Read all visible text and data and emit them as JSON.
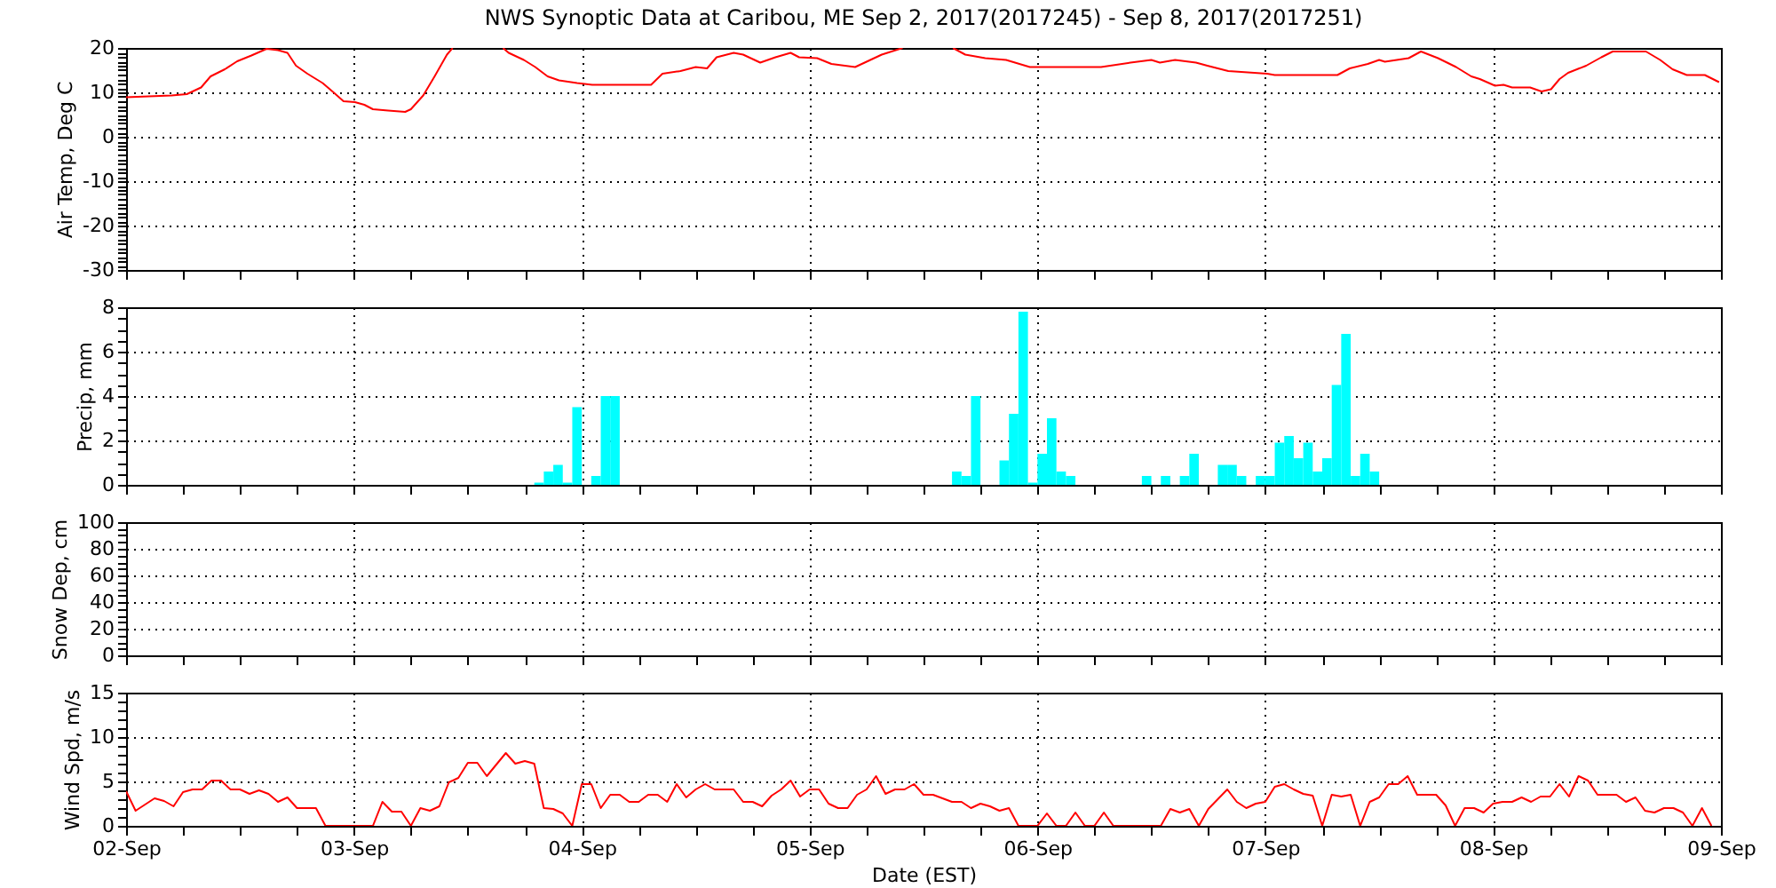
{
  "chart_data": [
    {
      "type": "line",
      "title": "NWS Synoptic Data at Caribou, ME   Sep  2, 2017(2017245) - Sep  8, 2017(2017251)",
      "ylabel": "Air Temp, Deg C",
      "grid": true,
      "tick_labels": "y",
      "xlim": [
        "2017-09-02T00:00",
        "2017-09-09T00:00"
      ],
      "xticks": [
        {
          "value": "2017-09-02T00:00",
          "label": null
        },
        {
          "value": "2017-09-02T06:00",
          "label": null
        },
        {
          "value": "2017-09-02T12:00",
          "label": null
        },
        {
          "value": "2017-09-02T18:00",
          "label": null
        },
        {
          "value": "2017-09-03T00:00",
          "label": null
        },
        {
          "value": "2017-09-03T06:00",
          "label": null
        },
        {
          "value": "2017-09-03T12:00",
          "label": null
        },
        {
          "value": "2017-09-03T18:00",
          "label": null
        },
        {
          "value": "2017-09-04T00:00",
          "label": null
        },
        {
          "value": "2017-09-04T06:00",
          "label": null
        },
        {
          "value": "2017-09-04T12:00",
          "label": null
        },
        {
          "value": "2017-09-04T18:00",
          "label": null
        },
        {
          "value": "2017-09-05T00:00",
          "label": null
        },
        {
          "value": "2017-09-05T06:00",
          "label": null
        },
        {
          "value": "2017-09-05T12:00",
          "label": null
        },
        {
          "value": "2017-09-05T18:00",
          "label": null
        },
        {
          "value": "2017-09-06T00:00",
          "label": null
        },
        {
          "value": "2017-09-06T06:00",
          "label": null
        },
        {
          "value": "2017-09-06T12:00",
          "label": null
        },
        {
          "value": "2017-09-06T18:00",
          "label": null
        },
        {
          "value": "2017-09-07T00:00",
          "label": null
        },
        {
          "value": "2017-09-07T06:00",
          "label": null
        },
        {
          "value": "2017-09-07T12:00",
          "label": null
        },
        {
          "value": "2017-09-07T18:00",
          "label": null
        },
        {
          "value": "2017-09-08T00:00",
          "label": null
        },
        {
          "value": "2017-09-08T06:00",
          "label": null
        },
        {
          "value": "2017-09-08T12:00",
          "label": null
        },
        {
          "value": "2017-09-08T18:00",
          "label": null
        },
        {
          "value": "2017-09-09T00:00",
          "label": null
        }
      ],
      "ylim": [
        -30,
        20
      ],
      "yticks": [
        -30,
        {
          "value": -29,
          "label": null
        },
        {
          "value": -28,
          "label": null
        },
        {
          "value": -27,
          "label": null
        },
        {
          "value": -26,
          "label": null
        },
        {
          "value": -25,
          "label": null
        },
        {
          "value": -24,
          "label": null
        },
        {
          "value": -23,
          "label": null
        },
        {
          "value": -22,
          "label": null
        },
        {
          "value": -21,
          "label": null
        },
        -20,
        {
          "value": -19,
          "label": null
        },
        {
          "value": -18,
          "label": null
        },
        {
          "value": -17,
          "label": null
        },
        {
          "value": -16,
          "label": null
        },
        {
          "value": -15,
          "label": null
        },
        {
          "value": -14,
          "label": null
        },
        {
          "value": -13,
          "label": null
        },
        {
          "value": -12,
          "label": null
        },
        {
          "value": -11,
          "label": null
        },
        -10,
        {
          "value": -9,
          "label": null
        },
        {
          "value": -8,
          "label": null
        },
        {
          "value": -7,
          "label": null
        },
        {
          "value": -6,
          "label": null
        },
        {
          "value": -5,
          "label": null
        },
        {
          "value": -4,
          "label": null
        },
        {
          "value": -3,
          "label": null
        },
        {
          "value": -2,
          "label": null
        },
        {
          "value": -1,
          "label": null
        },
        0,
        {
          "value": 1,
          "label": null
        },
        {
          "value": 2,
          "label": null
        },
        {
          "value": 3,
          "label": null
        },
        {
          "value": 4,
          "label": null
        },
        {
          "value": 5,
          "label": null
        },
        {
          "value": 6,
          "label": null
        },
        {
          "value": 7,
          "label": null
        },
        {
          "value": 8,
          "label": null
        },
        {
          "value": 9,
          "label": null
        },
        10,
        {
          "value": 11,
          "label": null
        },
        {
          "value": 12,
          "label": null
        },
        {
          "value": 13,
          "label": null
        },
        {
          "value": 14,
          "label": null
        },
        {
          "value": 15,
          "label": null
        },
        {
          "value": 16,
          "label": null
        },
        {
          "value": 17,
          "label": null
        },
        {
          "value": 18,
          "label": null
        },
        {
          "value": 19,
          "label": null
        },
        20
      ],
      "series": [
        {
          "color": "#ff0000",
          "x": [
            "2017-09-02T00:00",
            "2017-09-02T04:48",
            "2017-09-02T06:24",
            "2017-09-02T07:54",
            "2017-09-02T08:54",
            "2017-09-02T10:24",
            "2017-09-02T11:42",
            "2017-09-02T13:12",
            "2017-09-02T14:48",
            "2017-09-02T16:00",
            "2017-09-02T17:00",
            "2017-09-02T17:54",
            "2017-09-02T19:06",
            "2017-09-02T20:42",
            "2017-09-02T21:54",
            "2017-09-02T22:54",
            "2017-09-03T00:06",
            "2017-09-03T01:06",
            "2017-09-03T02:00",
            "2017-09-03T03:36",
            "2017-09-03T05:24",
            "2017-09-03T06:00",
            "2017-09-03T07:18",
            "2017-09-03T08:30",
            "2017-09-03T09:48",
            "2017-09-03T10:24",
            "2017-09-03T13:00",
            "2017-09-03T15:42",
            "2017-09-03T16:18",
            "2017-09-03T17:54",
            "2017-09-03T19:06",
            "2017-09-03T20:24",
            "2017-09-03T21:36",
            "2017-09-03T23:30",
            "2017-09-04T01:06",
            "2017-09-04T07:18",
            "2017-09-04T08:30",
            "2017-09-04T10:24",
            "2017-09-04T12:00",
            "2017-09-04T13:12",
            "2017-09-04T14:12",
            "2017-09-04T16:00",
            "2017-09-04T17:00",
            "2017-09-04T18:48",
            "2017-09-04T20:24",
            "2017-09-04T22:00",
            "2017-09-04T22:54",
            "2017-09-05T00:48",
            "2017-09-05T02:18",
            "2017-09-05T04:48",
            "2017-09-05T06:24",
            "2017-09-05T07:36",
            "2017-09-05T09:48",
            "2017-09-05T12:30",
            "2017-09-05T15:06",
            "2017-09-05T16:24",
            "2017-09-05T18:30",
            "2017-09-05T20:42",
            "2017-09-05T23:12",
            "2017-09-06T01:06",
            "2017-09-06T06:42",
            "2017-09-06T09:48",
            "2017-09-06T12:00",
            "2017-09-06T12:54",
            "2017-09-06T14:30",
            "2017-09-06T16:42",
            "2017-09-06T17:54",
            "2017-09-06T20:06",
            "2017-09-07T00:12",
            "2017-09-07T01:00",
            "2017-09-07T07:36",
            "2017-09-07T08:54",
            "2017-09-07T10:48",
            "2017-09-07T12:00",
            "2017-09-07T12:36",
            "2017-09-07T15:06",
            "2017-09-07T16:24",
            "2017-09-07T18:12",
            "2017-09-07T20:06",
            "2017-09-07T21:42",
            "2017-09-07T22:36",
            "2017-09-08T00:12",
            "2017-09-08T01:06",
            "2017-09-08T02:00",
            "2017-09-08T03:54",
            "2017-09-08T05:06",
            "2017-09-08T06:06",
            "2017-09-08T07:00",
            "2017-09-08T07:54",
            "2017-09-08T09:48",
            "2017-09-08T11:24",
            "2017-09-08T12:36",
            "2017-09-08T16:06",
            "2017-09-08T17:36",
            "2017-09-08T18:54",
            "2017-09-08T20:24",
            "2017-09-08T22:18",
            "2017-09-08T23:48"
          ],
          "values": [
            8.9,
            9.3,
            9.6,
            11.1,
            13.6,
            15.2,
            17.0,
            18.3,
            19.8,
            19.5,
            18.9,
            16.0,
            14.2,
            12.1,
            9.9,
            8.0,
            7.8,
            7.2,
            6.2,
            5.9,
            5.6,
            6.2,
            9.3,
            13.6,
            18.5,
            20,
            null,
            20,
            18.9,
            17.3,
            15.7,
            13.6,
            12.7,
            12.1,
            11.7,
            11.7,
            14.2,
            14.8,
            15.7,
            15.4,
            17.9,
            18.9,
            18.5,
            16.7,
            17.9,
            18.9,
            17.9,
            17.7,
            16.4,
            15.7,
            17.3,
            18.5,
            20,
            null,
            20,
            18.5,
            17.7,
            17.3,
            15.7,
            15.7,
            15.7,
            16.7,
            17.3,
            16.7,
            17.3,
            16.7,
            16.0,
            14.8,
            14.2,
            13.9,
            13.9,
            15.4,
            16.4,
            17.3,
            16.9,
            17.7,
            19.2,
            17.7,
            15.7,
            13.6,
            13.0,
            11.5,
            11.7,
            11.1,
            11.1,
            10.2,
            10.7,
            13.0,
            14.4,
            16.0,
            17.9,
            19.2,
            19.2,
            17.3,
            15.2,
            13.9,
            13.9,
            12.3
          ]
        }
      ]
    },
    {
      "type": "bar",
      "ylabel": "Precip, mm",
      "grid": true,
      "tick_labels": "y",
      "xlim": [
        "2017-09-02T00:00",
        "2017-09-09T00:00"
      ],
      "xticks": [
        {
          "value": "2017-09-02T00:00",
          "label": null
        },
        {
          "value": "2017-09-02T06:00",
          "label": null
        },
        {
          "value": "2017-09-02T12:00",
          "label": null
        },
        {
          "value": "2017-09-02T18:00",
          "label": null
        },
        {
          "value": "2017-09-03T00:00",
          "label": null
        },
        {
          "value": "2017-09-03T06:00",
          "label": null
        },
        {
          "value": "2017-09-03T12:00",
          "label": null
        },
        {
          "value": "2017-09-03T18:00",
          "label": null
        },
        {
          "value": "2017-09-04T00:00",
          "label": null
        },
        {
          "value": "2017-09-04T06:00",
          "label": null
        },
        {
          "value": "2017-09-04T12:00",
          "label": null
        },
        {
          "value": "2017-09-04T18:00",
          "label": null
        },
        {
          "value": "2017-09-05T00:00",
          "label": null
        },
        {
          "value": "2017-09-05T06:00",
          "label": null
        },
        {
          "value": "2017-09-05T12:00",
          "label": null
        },
        {
          "value": "2017-09-05T18:00",
          "label": null
        },
        {
          "value": "2017-09-06T00:00",
          "label": null
        },
        {
          "value": "2017-09-06T06:00",
          "label": null
        },
        {
          "value": "2017-09-06T12:00",
          "label": null
        },
        {
          "value": "2017-09-06T18:00",
          "label": null
        },
        {
          "value": "2017-09-07T00:00",
          "label": null
        },
        {
          "value": "2017-09-07T06:00",
          "label": null
        },
        {
          "value": "2017-09-07T12:00",
          "label": null
        },
        {
          "value": "2017-09-07T18:00",
          "label": null
        },
        {
          "value": "2017-09-08T00:00",
          "label": null
        },
        {
          "value": "2017-09-08T06:00",
          "label": null
        },
        {
          "value": "2017-09-08T12:00",
          "label": null
        },
        {
          "value": "2017-09-08T18:00",
          "label": null
        },
        {
          "value": "2017-09-09T00:00",
          "label": null
        }
      ],
      "ylim": [
        0,
        8
      ],
      "yticks": [
        0,
        {
          "value": 0.5,
          "label": null
        },
        {
          "value": 1,
          "label": null
        },
        {
          "value": 1.5,
          "label": null
        },
        2,
        {
          "value": 2.5,
          "label": null
        },
        {
          "value": 3,
          "label": null
        },
        {
          "value": 3.5,
          "label": null
        },
        4,
        {
          "value": 4.5,
          "label": null
        },
        {
          "value": 5,
          "label": null
        },
        {
          "value": 5.5,
          "label": null
        },
        6,
        {
          "value": 6.5,
          "label": null
        },
        {
          "value": 7,
          "label": null
        },
        {
          "value": 7.5,
          "label": null
        },
        8
      ],
      "series": [
        {
          "color": "#00ffff",
          "x": [
            "2017-09-03T19:30",
            "2017-09-03T20:30",
            "2017-09-03T21:30",
            "2017-09-03T22:30",
            "2017-09-03T23:30",
            "2017-09-04T01:30",
            "2017-09-04T02:30",
            "2017-09-04T03:30",
            "2017-09-05T15:30",
            "2017-09-05T16:30",
            "2017-09-05T17:30",
            "2017-09-05T20:30",
            "2017-09-05T21:30",
            "2017-09-05T22:30",
            "2017-09-05T23:30",
            "2017-09-06T00:30",
            "2017-09-06T01:30",
            "2017-09-06T02:30",
            "2017-09-06T03:30",
            "2017-09-06T11:30",
            "2017-09-06T13:30",
            "2017-09-06T15:30",
            "2017-09-06T16:30",
            "2017-09-06T19:30",
            "2017-09-06T20:30",
            "2017-09-06T21:30",
            "2017-09-06T23:30",
            "2017-09-07T00:30",
            "2017-09-07T01:30",
            "2017-09-07T02:30",
            "2017-09-07T03:30",
            "2017-09-07T04:30",
            "2017-09-07T05:30",
            "2017-09-07T06:30",
            "2017-09-07T07:30",
            "2017-09-07T08:30",
            "2017-09-07T09:30",
            "2017-09-07T10:30",
            "2017-09-07T11:30"
          ],
          "values": [
            0.1,
            0.6,
            0.9,
            0.1,
            3.5,
            0.4,
            4.0,
            4.0,
            0.6,
            0.4,
            4.0,
            1.1,
            3.2,
            7.8,
            0.1,
            1.4,
            3.0,
            0.6,
            0.4,
            0.4,
            0.4,
            0.4,
            1.4,
            0.9,
            0.9,
            0.4,
            0.4,
            0.4,
            1.9,
            2.2,
            1.2,
            1.9,
            0.6,
            1.2,
            4.5,
            6.8,
            0.4,
            1.4,
            0.6
          ]
        }
      ]
    },
    {
      "type": "line",
      "ylabel": "Snow Dep, cm",
      "grid": true,
      "tick_labels": "y",
      "xlim": [
        "2017-09-02T00:00",
        "2017-09-09T00:00"
      ],
      "xticks": [
        {
          "value": "2017-09-02T00:00",
          "label": null
        },
        {
          "value": "2017-09-02T06:00",
          "label": null
        },
        {
          "value": "2017-09-02T12:00",
          "label": null
        },
        {
          "value": "2017-09-02T18:00",
          "label": null
        },
        {
          "value": "2017-09-03T00:00",
          "label": null
        },
        {
          "value": "2017-09-03T06:00",
          "label": null
        },
        {
          "value": "2017-09-03T12:00",
          "label": null
        },
        {
          "value": "2017-09-03T18:00",
          "label": null
        },
        {
          "value": "2017-09-04T00:00",
          "label": null
        },
        {
          "value": "2017-09-04T06:00",
          "label": null
        },
        {
          "value": "2017-09-04T12:00",
          "label": null
        },
        {
          "value": "2017-09-04T18:00",
          "label": null
        },
        {
          "value": "2017-09-05T00:00",
          "label": null
        },
        {
          "value": "2017-09-05T06:00",
          "label": null
        },
        {
          "value": "2017-09-05T12:00",
          "label": null
        },
        {
          "value": "2017-09-05T18:00",
          "label": null
        },
        {
          "value": "2017-09-06T00:00",
          "label": null
        },
        {
          "value": "2017-09-06T06:00",
          "label": null
        },
        {
          "value": "2017-09-06T12:00",
          "label": null
        },
        {
          "value": "2017-09-06T18:00",
          "label": null
        },
        {
          "value": "2017-09-07T00:00",
          "label": null
        },
        {
          "value": "2017-09-07T06:00",
          "label": null
        },
        {
          "value": "2017-09-07T12:00",
          "label": null
        },
        {
          "value": "2017-09-07T18:00",
          "label": null
        },
        {
          "value": "2017-09-08T00:00",
          "label": null
        },
        {
          "value": "2017-09-08T06:00",
          "label": null
        },
        {
          "value": "2017-09-08T12:00",
          "label": null
        },
        {
          "value": "2017-09-08T18:00",
          "label": null
        },
        {
          "value": "2017-09-09T00:00",
          "label": null
        }
      ],
      "ylim": [
        0,
        100
      ],
      "yticks": [
        0,
        {
          "value": 5,
          "label": null
        },
        {
          "value": 10,
          "label": null
        },
        {
          "value": 15,
          "label": null
        },
        20,
        {
          "value": 25,
          "label": null
        },
        {
          "value": 30,
          "label": null
        },
        {
          "value": 35,
          "label": null
        },
        40,
        {
          "value": 45,
          "label": null
        },
        {
          "value": 50,
          "label": null
        },
        {
          "value": 55,
          "label": null
        },
        60,
        {
          "value": 65,
          "label": null
        },
        {
          "value": 70,
          "label": null
        },
        {
          "value": 75,
          "label": null
        },
        80,
        {
          "value": 85,
          "label": null
        },
        {
          "value": 90,
          "label": null
        },
        {
          "value": 95,
          "label": null
        },
        100
      ]
    },
    {
      "type": "line",
      "ylabel": "Wind Spd, m/s",
      "xlabel": "Date (EST)",
      "grid": true,
      "xlim": [
        "2017-09-02T00:00",
        "2017-09-09T00:00"
      ],
      "xticks": [
        {
          "value": "2017-09-02T00:00",
          "label": "02-Sep"
        },
        {
          "value": "2017-09-02T06:00",
          "label": null
        },
        {
          "value": "2017-09-02T12:00",
          "label": null
        },
        {
          "value": "2017-09-02T18:00",
          "label": null
        },
        {
          "value": "2017-09-03T00:00",
          "label": "03-Sep"
        },
        {
          "value": "2017-09-03T06:00",
          "label": null
        },
        {
          "value": "2017-09-03T12:00",
          "label": null
        },
        {
          "value": "2017-09-03T18:00",
          "label": null
        },
        {
          "value": "2017-09-04T00:00",
          "label": "04-Sep"
        },
        {
          "value": "2017-09-04T06:00",
          "label": null
        },
        {
          "value": "2017-09-04T12:00",
          "label": null
        },
        {
          "value": "2017-09-04T18:00",
          "label": null
        },
        {
          "value": "2017-09-05T00:00",
          "label": "05-Sep"
        },
        {
          "value": "2017-09-05T06:00",
          "label": null
        },
        {
          "value": "2017-09-05T12:00",
          "label": null
        },
        {
          "value": "2017-09-05T18:00",
          "label": null
        },
        {
          "value": "2017-09-06T00:00",
          "label": "06-Sep"
        },
        {
          "value": "2017-09-06T06:00",
          "label": null
        },
        {
          "value": "2017-09-06T12:00",
          "label": null
        },
        {
          "value": "2017-09-06T18:00",
          "label": null
        },
        {
          "value": "2017-09-07T00:00",
          "label": "07-Sep"
        },
        {
          "value": "2017-09-07T06:00",
          "label": null
        },
        {
          "value": "2017-09-07T12:00",
          "label": null
        },
        {
          "value": "2017-09-07T18:00",
          "label": null
        },
        {
          "value": "2017-09-08T00:00",
          "label": "08-Sep"
        },
        {
          "value": "2017-09-08T06:00",
          "label": null
        },
        {
          "value": "2017-09-08T12:00",
          "label": null
        },
        {
          "value": "2017-09-08T18:00",
          "label": null
        },
        {
          "value": "2017-09-09T00:00",
          "label": "09-Sep"
        }
      ],
      "ylim": [
        0,
        15
      ],
      "yticks": [
        0,
        {
          "value": 1,
          "label": null
        },
        {
          "value": 2,
          "label": null
        },
        {
          "value": 3,
          "label": null
        },
        {
          "value": 4,
          "label": null
        },
        5,
        {
          "value": 6,
          "label": null
        },
        {
          "value": 7,
          "label": null
        },
        {
          "value": 8,
          "label": null
        },
        {
          "value": 9,
          "label": null
        },
        10,
        {
          "value": 11,
          "label": null
        },
        {
          "value": 12,
          "label": null
        },
        {
          "value": 13,
          "label": null
        },
        {
          "value": 14,
          "label": null
        },
        15
      ],
      "series": [
        {
          "color": "#ff0000",
          "x": [
            "2017-09-02T00:00",
            "2017-09-02T01:00",
            "2017-09-02T03:00",
            "2017-09-02T04:00",
            "2017-09-02T05:00",
            "2017-09-02T06:00",
            "2017-09-02T07:00",
            "2017-09-02T08:00",
            "2017-09-02T09:00",
            "2017-09-02T10:00",
            "2017-09-02T11:00",
            "2017-09-02T12:00",
            "2017-09-02T13:00",
            "2017-09-02T14:00",
            "2017-09-02T15:00",
            "2017-09-02T16:00",
            "2017-09-02T17:00",
            "2017-09-02T18:00",
            "2017-09-02T20:00",
            "2017-09-02T21:00",
            "2017-09-03T02:00",
            "2017-09-03T03:00",
            "2017-09-03T04:00",
            "2017-09-03T05:00",
            "2017-09-03T06:00",
            "2017-09-03T07:00",
            "2017-09-03T08:00",
            "2017-09-03T09:00",
            "2017-09-03T10:00",
            "2017-09-03T11:00",
            "2017-09-03T12:00",
            "2017-09-03T13:00",
            "2017-09-03T14:00",
            "2017-09-03T15:00",
            "2017-09-03T16:00",
            "2017-09-03T17:00",
            "2017-09-03T18:00",
            "2017-09-03T19:00",
            "2017-09-03T20:00",
            "2017-09-03T21:00",
            "2017-09-03T22:00",
            "2017-09-03T23:00",
            "2017-09-04T00:00",
            "2017-09-04T01:00",
            "2017-09-04T02:00",
            "2017-09-04T03:00",
            "2017-09-04T04:00",
            "2017-09-04T05:00",
            "2017-09-04T06:00",
            "2017-09-04T07:00",
            "2017-09-04T08:00",
            "2017-09-04T09:00",
            "2017-09-04T10:00",
            "2017-09-04T11:00",
            "2017-09-04T12:00",
            "2017-09-04T13:00",
            "2017-09-04T14:00",
            "2017-09-04T16:00",
            "2017-09-04T17:00",
            "2017-09-04T18:00",
            "2017-09-04T19:00",
            "2017-09-04T20:00",
            "2017-09-04T21:00",
            "2017-09-04T22:00",
            "2017-09-04T23:00",
            "2017-09-05T00:00",
            "2017-09-05T01:00",
            "2017-09-05T02:00",
            "2017-09-05T03:00",
            "2017-09-05T04:00",
            "2017-09-05T05:00",
            "2017-09-05T06:00",
            "2017-09-05T07:00",
            "2017-09-05T08:00",
            "2017-09-05T09:00",
            "2017-09-05T10:00",
            "2017-09-05T11:00",
            "2017-09-05T12:00",
            "2017-09-05T13:00",
            "2017-09-05T14:00",
            "2017-09-05T15:00",
            "2017-09-05T16:00",
            "2017-09-05T17:00",
            "2017-09-05T18:00",
            "2017-09-05T19:00",
            "2017-09-05T20:00",
            "2017-09-05T21:00",
            "2017-09-05T22:00",
            "2017-09-06T00:00",
            "2017-09-06T01:00",
            "2017-09-06T02:00",
            "2017-09-06T03:00",
            "2017-09-06T04:00",
            "2017-09-06T05:00",
            "2017-09-06T06:00",
            "2017-09-06T07:00",
            "2017-09-06T08:00",
            "2017-09-06T13:00",
            "2017-09-06T14:00",
            "2017-09-06T15:00",
            "2017-09-06T16:00",
            "2017-09-06T17:00",
            "2017-09-06T18:00",
            "2017-09-06T19:00",
            "2017-09-06T20:00",
            "2017-09-06T21:00",
            "2017-09-06T22:00",
            "2017-09-06T23:00",
            "2017-09-07T00:00",
            "2017-09-07T01:00",
            "2017-09-07T02:00",
            "2017-09-07T03:00",
            "2017-09-07T04:00",
            "2017-09-07T05:00",
            "2017-09-07T06:00",
            "2017-09-07T07:00",
            "2017-09-07T08:00",
            "2017-09-07T09:00",
            "2017-09-07T10:00",
            "2017-09-07T11:00",
            "2017-09-07T12:00",
            "2017-09-07T13:00",
            "2017-09-07T14:00",
            "2017-09-07T15:00",
            "2017-09-07T16:00",
            "2017-09-07T17:00",
            "2017-09-07T18:00",
            "2017-09-07T19:00",
            "2017-09-07T20:00",
            "2017-09-07T21:00",
            "2017-09-07T22:00",
            "2017-09-07T23:00",
            "2017-09-08T00:00",
            "2017-09-08T01:00",
            "2017-09-08T02:00",
            "2017-09-08T03:00",
            "2017-09-08T04:00",
            "2017-09-08T05:00",
            "2017-09-08T06:00",
            "2017-09-08T07:00",
            "2017-09-08T08:00",
            "2017-09-08T09:00",
            "2017-09-08T10:00",
            "2017-09-08T11:00",
            "2017-09-08T12:00",
            "2017-09-08T13:00",
            "2017-09-08T14:00",
            "2017-09-08T15:00",
            "2017-09-08T16:00",
            "2017-09-08T17:00",
            "2017-09-08T18:00",
            "2017-09-08T19:00",
            "2017-09-08T20:00",
            "2017-09-08T21:00",
            "2017-09-08T22:00",
            "2017-09-08T23:00"
          ],
          "values": [
            3.9,
            1.7,
            3.1,
            2.8,
            2.2,
            3.8,
            4.1,
            4.1,
            5.1,
            5.1,
            4.1,
            4.1,
            3.6,
            4.0,
            3.6,
            2.7,
            3.2,
            2.0,
            2.0,
            0,
            0,
            2.7,
            1.6,
            1.6,
            0,
            2.0,
            1.7,
            2.2,
            4.9,
            5.4,
            7.1,
            7.1,
            5.6,
            6.9,
            8.2,
            7.0,
            7.3,
            7.0,
            2.0,
            1.9,
            1.4,
            0,
            4.7,
            4.7,
            2.0,
            3.5,
            3.5,
            2.7,
            2.7,
            3.5,
            3.5,
            2.7,
            4.7,
            3.2,
            4.1,
            4.7,
            4.1,
            4.1,
            2.7,
            2.7,
            2.2,
            3.4,
            4.1,
            5.1,
            3.3,
            4.1,
            4.1,
            2.5,
            2.0,
            2.0,
            3.5,
            4.1,
            5.6,
            3.6,
            4.1,
            4.1,
            4.7,
            3.5,
            3.5,
            3.1,
            2.7,
            2.7,
            2.0,
            2.5,
            2.2,
            1.7,
            2.0,
            0,
            0,
            1.4,
            0,
            0,
            1.5,
            0,
            0,
            1.5,
            0,
            0,
            1.9,
            1.5,
            1.9,
            0,
            1.9,
            3.0,
            4.1,
            2.7,
            2.0,
            2.5,
            2.7,
            4.4,
            4.7,
            4.1,
            3.6,
            3.4,
            0,
            3.5,
            3.3,
            3.5,
            0,
            2.7,
            3.2,
            4.7,
            4.7,
            5.6,
            3.5,
            3.5,
            3.5,
            2.3,
            0,
            2.0,
            2.0,
            1.5,
            2.5,
            2.7,
            2.7,
            3.2,
            2.7,
            3.3,
            3.3,
            4.7,
            3.3,
            5.6,
            5.1,
            3.5,
            3.5,
            3.5,
            2.7,
            3.2,
            1.7,
            1.5,
            2.0,
            2.0,
            1.5,
            0,
            2.0,
            0
          ]
        }
      ]
    }
  ]
}
